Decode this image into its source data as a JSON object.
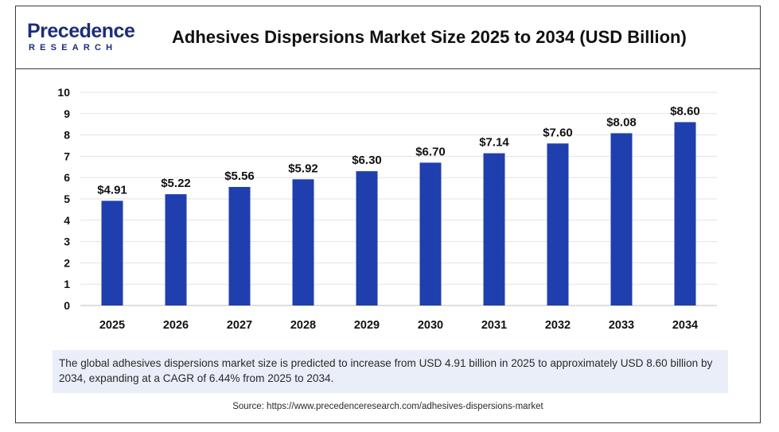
{
  "brand": {
    "logo_main": "Precedence",
    "logo_sub": "RESEARCH",
    "color": "#1b2e7a"
  },
  "chart_data": {
    "type": "bar",
    "title": "Adhesives Dispersions Market Size 2025 to 2034 (USD Billion)",
    "categories": [
      "2025",
      "2026",
      "2027",
      "2028",
      "2029",
      "2030",
      "2031",
      "2032",
      "2033",
      "2034"
    ],
    "values": [
      4.91,
      5.22,
      5.56,
      5.92,
      6.3,
      6.7,
      7.14,
      7.6,
      8.08,
      8.6
    ],
    "data_labels": [
      "$4.91",
      "$5.22",
      "$5.56",
      "$5.92",
      "$6.30",
      "$6.70",
      "$7.14",
      "$7.60",
      "$8.08",
      "$8.60"
    ],
    "y_ticks": [
      0,
      1,
      2,
      3,
      4,
      5,
      6,
      7,
      8,
      9,
      10
    ],
    "ylim": [
      0,
      10
    ],
    "grid": true,
    "bar_color": "#1f3fae",
    "xlabel": "",
    "ylabel": ""
  },
  "caption": "The global adhesives dispersions market size is predicted to increase from USD 4.91 billion in 2025 to approximately USD 8.60 billion by 2034, expanding at a CAGR of 6.44% from 2025 to 2034.",
  "source": "Source: https://www.precedenceresearch.com/adhesives-dispersions-market"
}
